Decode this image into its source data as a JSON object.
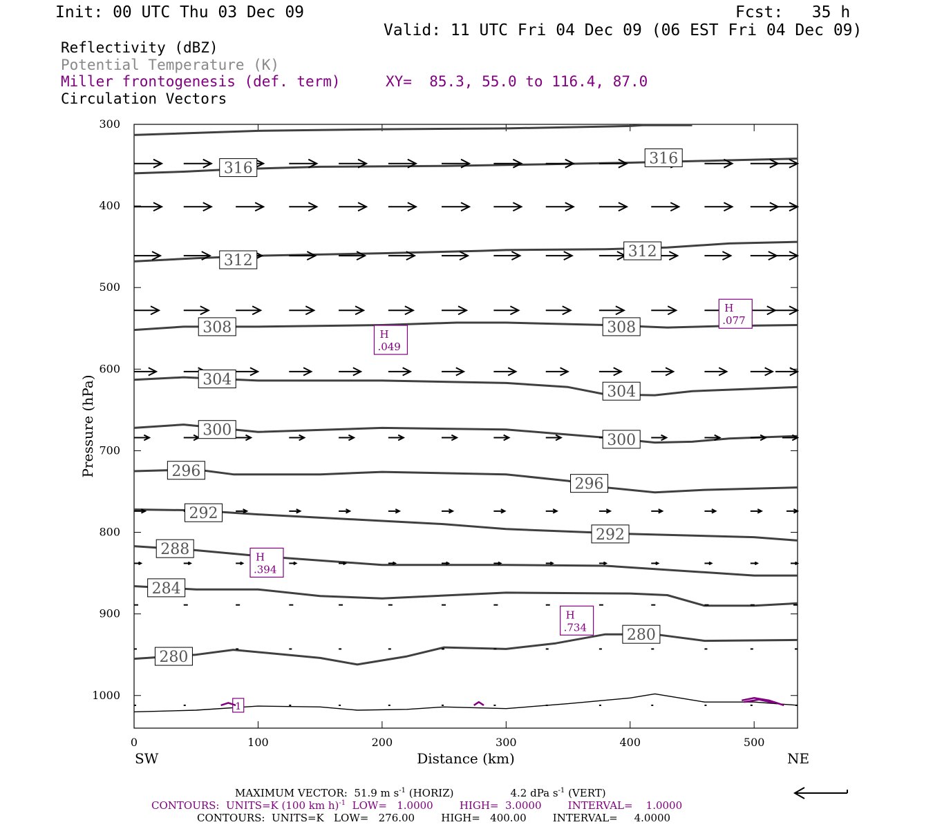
{
  "header": {
    "init": "Init: 00 UTC Thu 03 Dec 09",
    "fcst": "Fcst:   35 h",
    "valid": "Valid: 11 UTC Fri 04 Dec 09 (06 EST Fri 04 Dec 09)"
  },
  "layers": {
    "reflectivity": "Reflectivity (dBZ)",
    "theta": "Potential Temperature (K)",
    "frontogenesis": "Miller frontogenesis (def. term)",
    "xy": "XY=  85.3, 55.0 to 116.4, 87.0",
    "vectors": "Circulation Vectors"
  },
  "colors": {
    "frontogenesis": "#800080",
    "theta": "#404040",
    "vectors": "#000000",
    "theta_label": "#8a8a8a"
  },
  "chart_data": {
    "type": "line",
    "xlabel": "Distance (km)",
    "ylabel": "Pressure (hPa)",
    "xlim": [
      0,
      535
    ],
    "ylim": [
      1040,
      300
    ],
    "x_ticks": [
      "0",
      "100",
      "200",
      "300",
      "400",
      "500"
    ],
    "y_ticks": [
      "300",
      "400",
      "500",
      "600",
      "700",
      "800",
      "900",
      "1000"
    ],
    "x_end_labels": {
      "left": "SW",
      "right": "NE"
    },
    "theta_contours": [
      {
        "level": "316",
        "points": [
          [
            0,
            313
          ],
          [
            100,
            308
          ],
          [
            200,
            306
          ],
          [
            300,
            305
          ],
          [
            400,
            302
          ],
          [
            410,
            301
          ],
          [
            450,
            301
          ]
        ]
      },
      {
        "level": "316",
        "points": [
          [
            0,
            360
          ],
          [
            40,
            358
          ],
          [
            80,
            355
          ],
          [
            150,
            352
          ],
          [
            250,
            351
          ],
          [
            330,
            349
          ],
          [
            400,
            347
          ],
          [
            480,
            344
          ],
          [
            535,
            342
          ]
        ]
      },
      {
        "level": "312",
        "points": [
          [
            0,
            468
          ],
          [
            50,
            464
          ],
          [
            100,
            461
          ],
          [
            200,
            458
          ],
          [
            280,
            455
          ],
          [
            300,
            454
          ],
          [
            380,
            453
          ],
          [
            430,
            451
          ],
          [
            480,
            446
          ],
          [
            535,
            444
          ]
        ]
      },
      {
        "level": "308",
        "points": [
          [
            0,
            552
          ],
          [
            40,
            548
          ],
          [
            100,
            548
          ],
          [
            200,
            546
          ],
          [
            260,
            543
          ],
          [
            300,
            543
          ],
          [
            380,
            546
          ],
          [
            430,
            549
          ],
          [
            480,
            547
          ],
          [
            535,
            546
          ]
        ]
      },
      {
        "level": "304",
        "points": [
          [
            0,
            613
          ],
          [
            40,
            610
          ],
          [
            100,
            614
          ],
          [
            200,
            614
          ],
          [
            300,
            617
          ],
          [
            350,
            622
          ],
          [
            380,
            631
          ],
          [
            420,
            632
          ],
          [
            450,
            627
          ],
          [
            500,
            624
          ],
          [
            535,
            622
          ]
        ]
      },
      {
        "level": "300",
        "points": [
          [
            0,
            672
          ],
          [
            40,
            668
          ],
          [
            100,
            677
          ],
          [
            200,
            672
          ],
          [
            300,
            674
          ],
          [
            380,
            684
          ],
          [
            420,
            690
          ],
          [
            450,
            689
          ],
          [
            480,
            685
          ],
          [
            535,
            682
          ]
        ]
      },
      {
        "level": "296",
        "points": [
          [
            0,
            725
          ],
          [
            50,
            723
          ],
          [
            80,
            729
          ],
          [
            150,
            729
          ],
          [
            200,
            726
          ],
          [
            300,
            729
          ],
          [
            350,
            737
          ],
          [
            380,
            745
          ],
          [
            420,
            751
          ],
          [
            460,
            748
          ],
          [
            535,
            745
          ]
        ]
      },
      {
        "level": "292",
        "points": [
          [
            0,
            772
          ],
          [
            50,
            773
          ],
          [
            100,
            778
          ],
          [
            200,
            786
          ],
          [
            250,
            790
          ],
          [
            300,
            796
          ],
          [
            400,
            802
          ],
          [
            500,
            806
          ],
          [
            535,
            810
          ]
        ]
      },
      {
        "level": "288",
        "points": [
          [
            0,
            817
          ],
          [
            50,
            822
          ],
          [
            100,
            829
          ],
          [
            200,
            840
          ],
          [
            300,
            840
          ],
          [
            380,
            841
          ],
          [
            450,
            848
          ],
          [
            500,
            853
          ],
          [
            535,
            853
          ]
        ]
      },
      {
        "level": "284",
        "points": [
          [
            0,
            866
          ],
          [
            50,
            870
          ],
          [
            100,
            870
          ],
          [
            150,
            878
          ],
          [
            200,
            881
          ],
          [
            300,
            874
          ],
          [
            400,
            875
          ],
          [
            430,
            877
          ],
          [
            460,
            890
          ],
          [
            500,
            890
          ],
          [
            535,
            887
          ]
        ]
      },
      {
        "level": "280",
        "points": [
          [
            0,
            955
          ],
          [
            50,
            950
          ],
          [
            80,
            944
          ],
          [
            150,
            954
          ],
          [
            180,
            962
          ],
          [
            220,
            952
          ],
          [
            250,
            941
          ],
          [
            300,
            943
          ],
          [
            340,
            936
          ],
          [
            380,
            925
          ],
          [
            420,
            925
          ],
          [
            460,
            933
          ],
          [
            535,
            932
          ]
        ]
      },
      {
        "level": "276",
        "points": [
          [
            0,
            1020
          ],
          [
            50,
            1018
          ],
          [
            100,
            1013
          ],
          [
            150,
            1014
          ],
          [
            180,
            1018
          ],
          [
            220,
            1017
          ],
          [
            250,
            1014
          ],
          [
            300,
            1016
          ],
          [
            350,
            1010
          ],
          [
            400,
            1003
          ],
          [
            420,
            998
          ],
          [
            440,
            1003
          ],
          [
            460,
            1008
          ],
          [
            500,
            1008
          ],
          [
            535,
            1012
          ]
        ]
      }
    ],
    "theta_labels": [
      {
        "text": "316",
        "x": 84,
        "p": 353
      },
      {
        "text": "316",
        "x": 427,
        "p": 341
      },
      {
        "text": "312",
        "x": 84,
        "p": 466
      },
      {
        "text": "312",
        "x": 410,
        "p": 455
      },
      {
        "text": "308",
        "x": 67,
        "p": 548
      },
      {
        "text": "308",
        "x": 393,
        "p": 548
      },
      {
        "text": "304",
        "x": 67,
        "p": 612
      },
      {
        "text": "304",
        "x": 393,
        "p": 627
      },
      {
        "text": "300",
        "x": 67,
        "p": 674
      },
      {
        "text": "300",
        "x": 393,
        "p": 686
      },
      {
        "text": "296",
        "x": 42,
        "p": 724
      },
      {
        "text": "296",
        "x": 367,
        "p": 740
      },
      {
        "text": "292",
        "x": 56,
        "p": 776
      },
      {
        "text": "292",
        "x": 384,
        "p": 802
      },
      {
        "text": "288",
        "x": 33,
        "p": 820
      },
      {
        "text": "284",
        "x": 26,
        "p": 868
      },
      {
        "text": "280",
        "x": 32,
        "p": 952
      },
      {
        "text": "280",
        "x": 409,
        "p": 925
      }
    ],
    "frontogenesis_maxima": [
      {
        "label": "H",
        "value": ".049",
        "x": 207,
        "p": 565
      },
      {
        "label": "H",
        "value": ".077",
        "x": 485,
        "p": 533
      },
      {
        "label": "H",
        "value": ".394",
        "x": 107,
        "p": 838
      },
      {
        "label": "H",
        "value": ".734",
        "x": 357,
        "p": 909
      },
      {
        "label": "1",
        "value": "",
        "x": 84,
        "p": 1012
      }
    ],
    "vector_rows": [
      {
        "p": 348,
        "x": [
          0,
          40,
          82,
          125,
          165,
          205,
          248,
          290,
          332,
          375,
          417,
          460,
          497,
          535
        ],
        "len": 40
      },
      {
        "p": 401,
        "x": [
          0,
          40,
          82,
          125,
          165,
          205,
          248,
          290,
          332,
          375,
          417,
          460,
          497,
          535
        ],
        "len": 40
      },
      {
        "p": 461,
        "x": [
          0,
          40,
          82,
          125,
          165,
          205,
          248,
          290,
          332,
          375,
          417,
          460,
          497,
          535
        ],
        "len": 38
      },
      {
        "p": 528,
        "x": [
          0,
          40,
          82,
          125,
          165,
          205,
          248,
          290,
          332,
          375,
          417,
          460,
          497,
          535
        ],
        "len": 36
      },
      {
        "p": 603,
        "x": [
          0,
          40,
          82,
          125,
          165,
          205,
          248,
          290,
          332,
          375,
          417,
          460,
          497,
          535
        ],
        "len": 32
      },
      {
        "p": 684,
        "x": [
          0,
          40,
          82,
          125,
          165,
          205,
          248,
          290,
          332,
          375,
          417,
          460,
          497,
          535
        ],
        "len": 22
      },
      {
        "p": 774,
        "x": [
          0,
          40,
          82,
          125,
          165,
          205,
          248,
          290,
          332,
          375,
          417,
          460,
          497,
          535
        ],
        "len": 16
      },
      {
        "p": 838,
        "x": [
          0,
          40,
          82,
          125,
          165,
          205,
          248,
          290,
          332,
          375,
          417,
          460,
          497,
          535
        ],
        "len": 10
      },
      {
        "p": 889,
        "x": [
          0,
          40,
          82,
          125,
          165,
          205,
          248,
          290,
          332,
          375,
          417,
          460,
          497,
          535
        ],
        "len": 6
      },
      {
        "p": 943,
        "x": [
          0,
          40,
          82,
          125,
          165,
          205,
          248,
          290,
          332,
          375,
          417,
          460,
          497,
          535
        ],
        "len": 4
      },
      {
        "p": 1012,
        "x": [
          0,
          40,
          82,
          125,
          165,
          205,
          248,
          290,
          332,
          375,
          417,
          460,
          497,
          535
        ],
        "len": 3
      }
    ]
  },
  "footer": {
    "max_vector": "MAXIMUM VECTOR:  51.9 m s",
    "max_vector_horiz": " (HORIZ)",
    "max_vector_vert": "4.2 dPa s",
    "max_vector_vert_unit": " (VERT)",
    "sup": "-1",
    "contours_1a": "CONTOURS:  UNITS=K (100 km h)",
    "contours_1b": "  LOW=   1.0000        HIGH=  3.0000        INTERVAL=    1.0000",
    "contours_2": "CONTOURS:  UNITS=K   LOW=   276.00        HIGH=   400.00        INTERVAL=     4.0000"
  }
}
